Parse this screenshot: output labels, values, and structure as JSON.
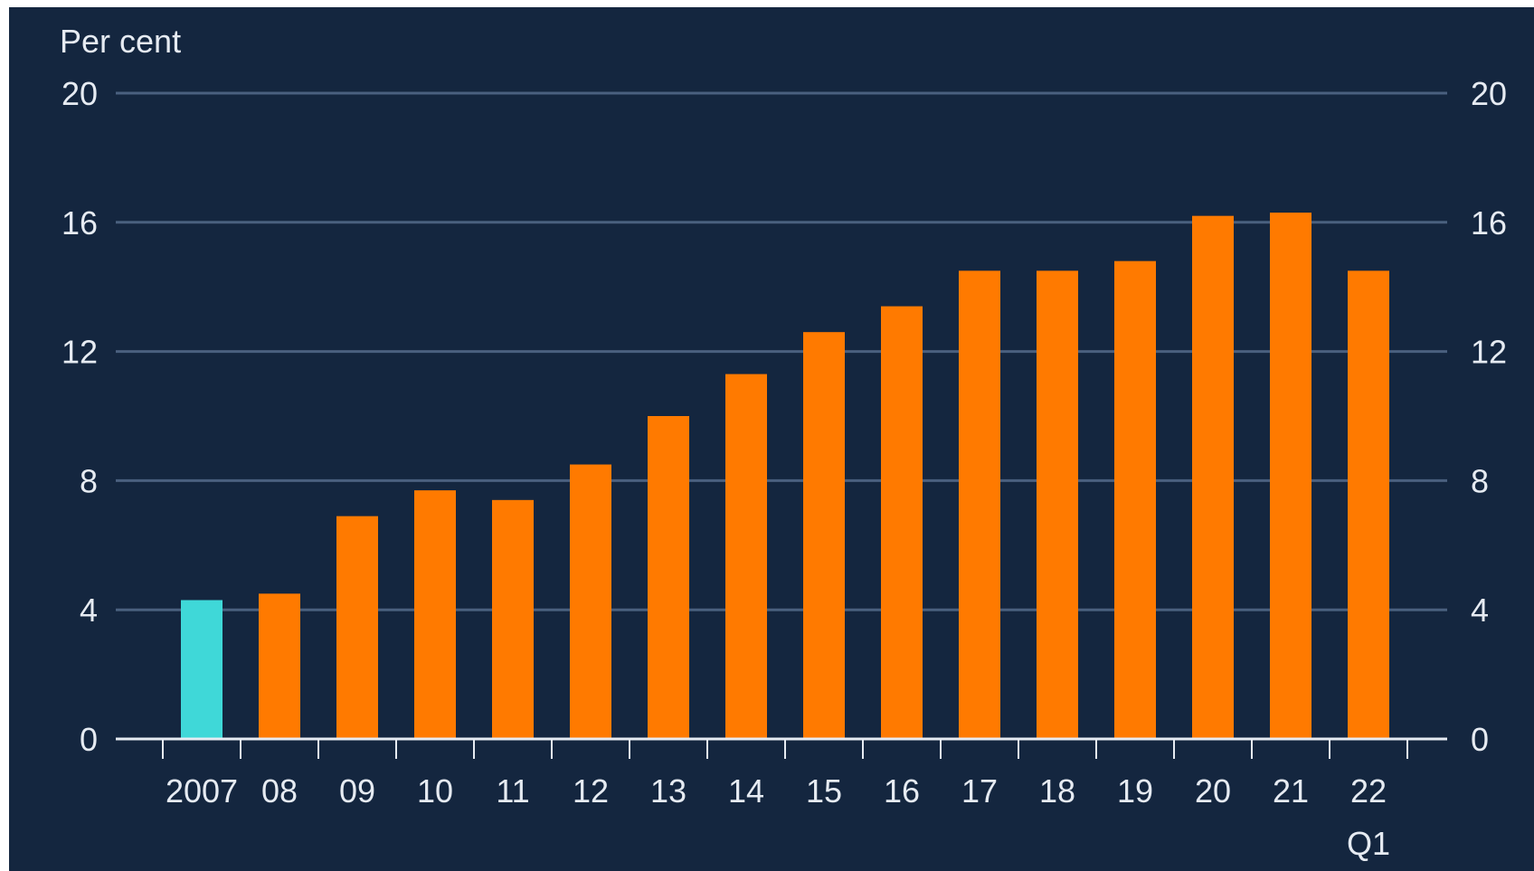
{
  "chart_data": {
    "type": "bar",
    "title": "",
    "ylabel": "Per cent",
    "xlabel": "",
    "ylim": [
      0,
      20
    ],
    "yticks": [
      0,
      4,
      8,
      12,
      16,
      20
    ],
    "grid": true,
    "right_axis": true,
    "categories": [
      "2007",
      "08",
      "09",
      "10",
      "11",
      "12",
      "13",
      "14",
      "15",
      "16",
      "17",
      "18",
      "19",
      "20",
      "21",
      "22"
    ],
    "category_sublabels": [
      "",
      "",
      "",
      "",
      "",
      "",
      "",
      "",
      "",
      "",
      "",
      "",
      "",
      "",
      "",
      "Q1"
    ],
    "values": [
      4.3,
      4.5,
      6.9,
      7.7,
      7.4,
      8.5,
      10.0,
      11.3,
      12.6,
      13.4,
      14.5,
      14.5,
      14.8,
      16.2,
      16.3,
      14.5
    ],
    "colors": {
      "background": "#14263f",
      "highlight_bar": "#3fd8d8",
      "bar": "#ff7a00",
      "grid": "#4a607f",
      "axis": "#e6ebf2",
      "text": "#e6ebf2"
    },
    "highlight_indices": [
      0
    ]
  }
}
